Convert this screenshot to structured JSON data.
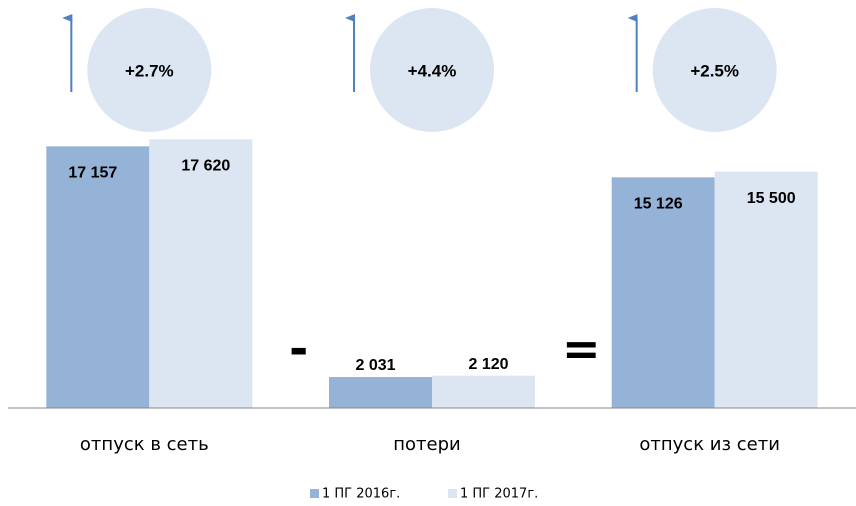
{
  "chart_data": {
    "type": "bar",
    "categories": [
      "отпуск в сеть",
      "потери",
      "отпуск из сети"
    ],
    "series": [
      {
        "name": "1 ПГ 2016г.",
        "color": "#95b3d7",
        "values": [
          17157,
          2031,
          15126
        ],
        "value_labels": [
          "17 157",
          "2 031",
          "15 126"
        ]
      },
      {
        "name": "1 ПГ 2017г.",
        "color": "#dce6f2",
        "values": [
          17620,
          2120,
          15500
        ],
        "value_labels": [
          "17 620",
          "2 120",
          "15 500"
        ]
      }
    ],
    "annotations": [
      "+2.7%",
      "+4.4%",
      "+2.5%"
    ],
    "operators": [
      "-",
      "="
    ],
    "ylim": [
      0,
      20000
    ],
    "legend": "bottom"
  }
}
